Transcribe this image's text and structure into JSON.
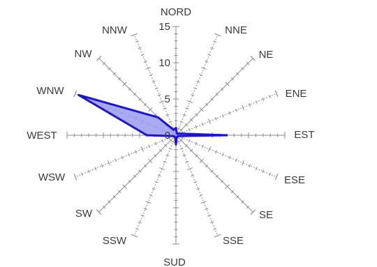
{
  "chart_data": {
    "type": "radar",
    "title": "",
    "directions": [
      "NORD",
      "NNE",
      "NE",
      "ENE",
      "EST",
      "ESE",
      "SE",
      "SSE",
      "SUD",
      "SSW",
      "SW",
      "WSW",
      "WEST",
      "WNW",
      "NW",
      "NNW"
    ],
    "values": [
      1.0,
      0.3,
      0.3,
      0.6,
      7.0,
      0.3,
      0.3,
      0.3,
      1.3,
      0.3,
      0.3,
      0.3,
      4.0,
      14.5,
      3.5,
      0.8
    ],
    "rlim": [
      0,
      15
    ],
    "ticks": [
      0,
      5,
      10,
      15
    ],
    "tick_labels": [
      "0",
      "5",
      "10",
      "15"
    ],
    "fill_color": "#9b9bf0",
    "line_color": "#1a14d6",
    "axis_color": "#8a8a8a",
    "grid": false
  }
}
